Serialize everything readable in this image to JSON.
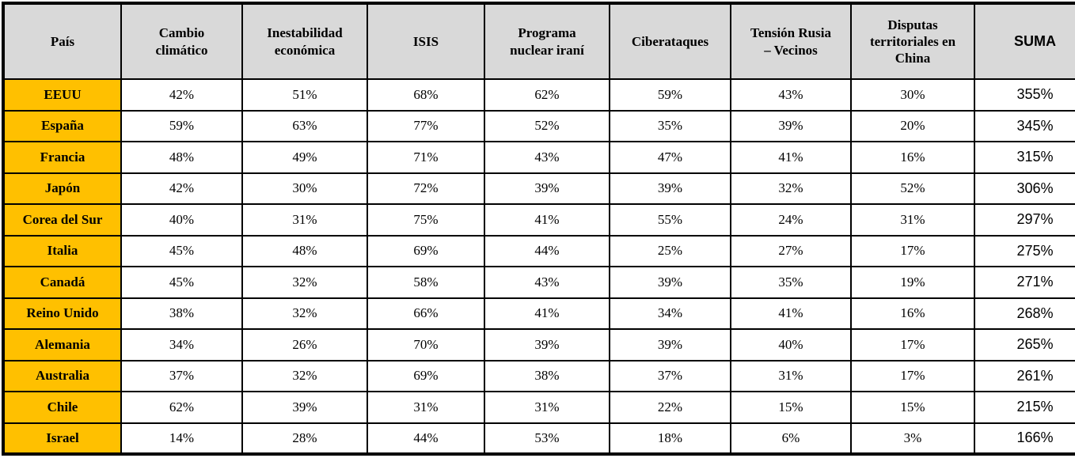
{
  "colors": {
    "header_bg": "#d9d9d9",
    "country_bg": "#ffc000",
    "cell_bg": "#ffffff",
    "border": "#000000",
    "text": "#000000"
  },
  "chart_data": {
    "type": "table",
    "unit": "%",
    "columns": [
      "País",
      "Cambio\nclimático",
      "Inestabilidad\neconómica",
      "ISIS",
      "Programa\nnuclear iraní",
      "Ciberataques",
      "Tensión Rusia\n– Vecinos",
      "Disputas\nterritoriales en\nChina",
      "SUMA"
    ],
    "column_ids": [
      "pais",
      "cambio-climatico",
      "inestabilidad-economica",
      "isis",
      "programa-nuclear-irani",
      "ciberataques",
      "tension-rusia-vecinos",
      "disputas-territoriales-china",
      "suma"
    ],
    "rows": [
      {
        "country": "EEUU",
        "values": [
          42,
          51,
          68,
          62,
          59,
          43,
          30
        ],
        "suma": 355
      },
      {
        "country": "España",
        "values": [
          59,
          63,
          77,
          52,
          35,
          39,
          20
        ],
        "suma": 345
      },
      {
        "country": "Francia",
        "values": [
          48,
          49,
          71,
          43,
          47,
          41,
          16
        ],
        "suma": 315
      },
      {
        "country": "Japón",
        "values": [
          42,
          30,
          72,
          39,
          39,
          32,
          52
        ],
        "suma": 306
      },
      {
        "country": "Corea del Sur",
        "values": [
          40,
          31,
          75,
          41,
          55,
          24,
          31
        ],
        "suma": 297
      },
      {
        "country": "Italia",
        "values": [
          45,
          48,
          69,
          44,
          25,
          27,
          17
        ],
        "suma": 275
      },
      {
        "country": "Canadá",
        "values": [
          45,
          32,
          58,
          43,
          39,
          35,
          19
        ],
        "suma": 271
      },
      {
        "country": "Reino Unido",
        "values": [
          38,
          32,
          66,
          41,
          34,
          41,
          16
        ],
        "suma": 268
      },
      {
        "country": "Alemania",
        "values": [
          34,
          26,
          70,
          39,
          39,
          40,
          17
        ],
        "suma": 265
      },
      {
        "country": "Australia",
        "values": [
          37,
          32,
          69,
          38,
          37,
          31,
          17
        ],
        "suma": 261
      },
      {
        "country": "Chile",
        "values": [
          62,
          39,
          31,
          31,
          22,
          15,
          15
        ],
        "suma": 215
      },
      {
        "country": "Israel",
        "values": [
          14,
          28,
          44,
          53,
          18,
          6,
          3
        ],
        "suma": 166
      }
    ]
  }
}
